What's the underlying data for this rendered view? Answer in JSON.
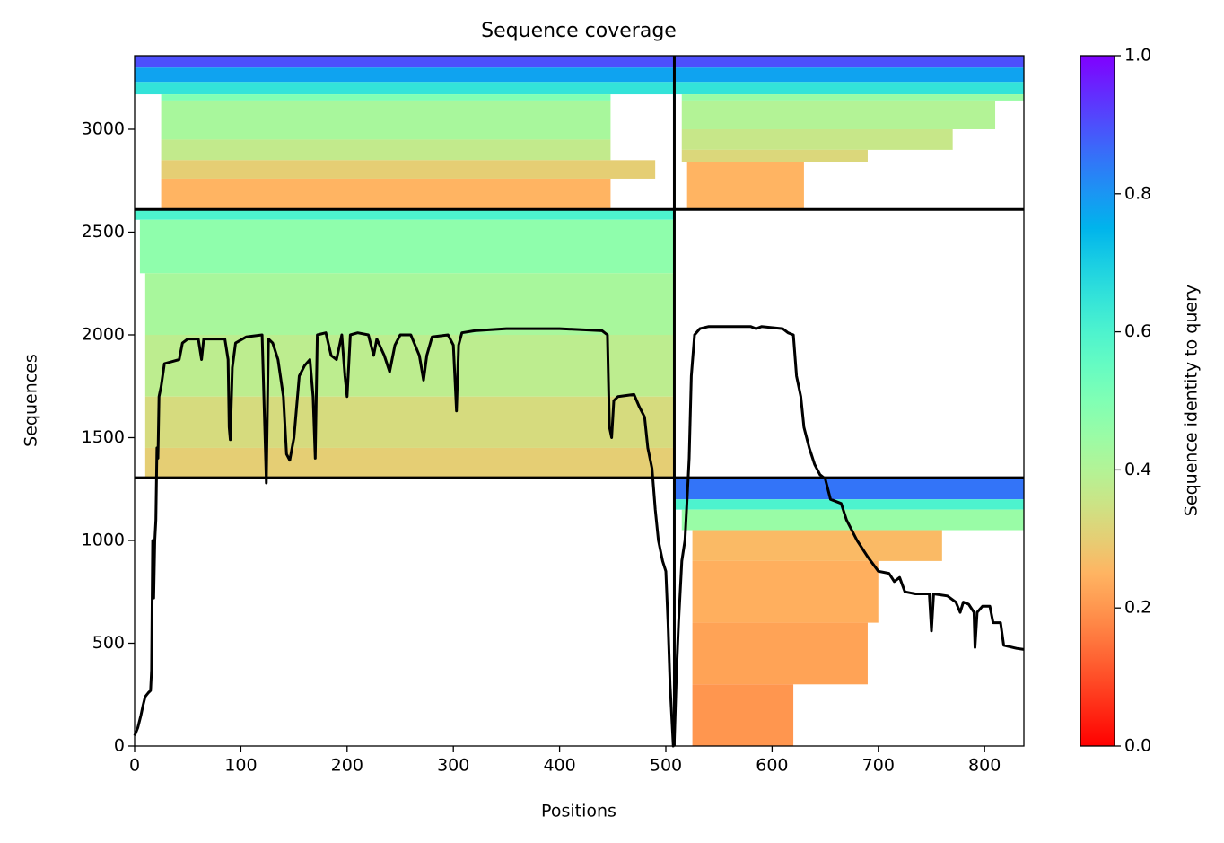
{
  "chart_data": {
    "type": "coverage",
    "title": "Sequence coverage",
    "xlabel": "Positions",
    "ylabel": "Sequences",
    "xlim": [
      0,
      837
    ],
    "ylim": [
      0,
      3358
    ],
    "xticks": [
      0,
      100,
      200,
      300,
      400,
      500,
      600,
      700,
      800
    ],
    "yticks": [
      0,
      500,
      1000,
      1500,
      2000,
      2500,
      3000
    ],
    "colormap": "rainbow_r",
    "colorbar": {
      "label": "Sequence identity to query",
      "lim": [
        0,
        1
      ],
      "ticks": [
        {
          "value": 0,
          "label": "0.0"
        },
        0.2,
        0.4,
        0.6,
        0.8,
        {
          "value": 1,
          "label": "1.0"
        }
      ]
    },
    "boundaries": {
      "x": [
        508
      ],
      "y": [
        1305,
        2610
      ]
    },
    "bands": [
      {
        "x0": 0,
        "x1": 508,
        "y0": 3300,
        "y1": 3358,
        "identity": 0.9
      },
      {
        "x0": 0,
        "x1": 508,
        "y0": 3230,
        "y1": 3300,
        "identity": 0.78
      },
      {
        "x0": 0,
        "x1": 508,
        "y0": 3170,
        "y1": 3230,
        "identity": 0.65
      },
      {
        "x0": 25,
        "x1": 448,
        "y0": 3140,
        "y1": 3170,
        "identity": 0.5
      },
      {
        "x0": 25,
        "x1": 448,
        "y0": 2950,
        "y1": 3140,
        "identity": 0.42
      },
      {
        "x0": 25,
        "x1": 448,
        "y0": 2850,
        "y1": 2950,
        "identity": 0.37
      },
      {
        "x0": 25,
        "x1": 490,
        "y0": 2760,
        "y1": 2850,
        "identity": 0.3
      },
      {
        "x0": 25,
        "x1": 448,
        "y0": 2610,
        "y1": 2760,
        "identity": 0.25
      },
      {
        "x0": 508,
        "x1": 837,
        "y0": 3300,
        "y1": 3358,
        "identity": 0.9
      },
      {
        "x0": 508,
        "x1": 837,
        "y0": 3230,
        "y1": 3300,
        "identity": 0.78
      },
      {
        "x0": 508,
        "x1": 837,
        "y0": 3170,
        "y1": 3230,
        "identity": 0.65
      },
      {
        "x0": 515,
        "x1": 837,
        "y0": 3140,
        "y1": 3170,
        "identity": 0.45
      },
      {
        "x0": 515,
        "x1": 810,
        "y0": 3000,
        "y1": 3140,
        "identity": 0.4
      },
      {
        "x0": 515,
        "x1": 770,
        "y0": 2900,
        "y1": 3000,
        "identity": 0.36
      },
      {
        "x0": 515,
        "x1": 690,
        "y0": 2840,
        "y1": 2900,
        "identity": 0.32
      },
      {
        "x0": 520,
        "x1": 630,
        "y0": 2610,
        "y1": 2840,
        "identity": 0.25
      },
      {
        "x0": 0,
        "x1": 508,
        "y0": 2560,
        "y1": 2610,
        "identity": 0.6
      },
      {
        "x0": 5,
        "x1": 508,
        "y0": 2300,
        "y1": 2560,
        "identity": 0.47
      },
      {
        "x0": 10,
        "x1": 508,
        "y0": 2000,
        "y1": 2300,
        "identity": 0.42
      },
      {
        "x0": 10,
        "x1": 508,
        "y0": 1700,
        "y1": 2000,
        "identity": 0.38
      },
      {
        "x0": 10,
        "x1": 508,
        "y0": 1450,
        "y1": 1700,
        "identity": 0.33
      },
      {
        "x0": 10,
        "x1": 508,
        "y0": 1305,
        "y1": 1450,
        "identity": 0.3
      },
      {
        "x0": 508,
        "x1": 837,
        "y0": 1200,
        "y1": 1305,
        "identity": 0.85
      },
      {
        "x0": 508,
        "x1": 837,
        "y0": 1150,
        "y1": 1200,
        "identity": 0.6
      },
      {
        "x0": 515,
        "x1": 837,
        "y0": 1050,
        "y1": 1150,
        "identity": 0.45
      },
      {
        "x0": 525,
        "x1": 760,
        "y0": 900,
        "y1": 1050,
        "identity": 0.26
      },
      {
        "x0": 525,
        "x1": 700,
        "y0": 600,
        "y1": 900,
        "identity": 0.24
      },
      {
        "x0": 525,
        "x1": 690,
        "y0": 300,
        "y1": 600,
        "identity": 0.22
      },
      {
        "x0": 525,
        "x1": 620,
        "y0": 0,
        "y1": 300,
        "identity": 0.2
      }
    ],
    "coverage": {
      "color": "#000000",
      "x": [
        0,
        3,
        6,
        8,
        10,
        13,
        15,
        16,
        17,
        18,
        19,
        20,
        21,
        22,
        23,
        25,
        28,
        35,
        42,
        45,
        50,
        60,
        63,
        65,
        85,
        88,
        89,
        90,
        92,
        95,
        105,
        120,
        124,
        126,
        130,
        135,
        140,
        143,
        146,
        150,
        155,
        160,
        165,
        168,
        170,
        172,
        180,
        185,
        190,
        195,
        198,
        200,
        203,
        210,
        220,
        225,
        228,
        235,
        240,
        245,
        250,
        260,
        268,
        272,
        275,
        280,
        295,
        300,
        303,
        305,
        308,
        320,
        350,
        400,
        440,
        445,
        447,
        449,
        451,
        455,
        470,
        475,
        480,
        483,
        487,
        490,
        493,
        497,
        500,
        502,
        504,
        506,
        507,
        508,
        510,
        512,
        515,
        518,
        520,
        522,
        524,
        527,
        532,
        540,
        560,
        580,
        585,
        590,
        610,
        615,
        620,
        623,
        627,
        630,
        635,
        640,
        645,
        650,
        655,
        665,
        670,
        680,
        690,
        700,
        710,
        715,
        720,
        725,
        735,
        748,
        750,
        752,
        765,
        773,
        777,
        780,
        785,
        790,
        791,
        793,
        798,
        805,
        808,
        815,
        818,
        830,
        837
      ],
      "values": [
        50,
        90,
        150,
        200,
        240,
        260,
        270,
        370,
        1000,
        720,
        1000,
        1100,
        1450,
        1400,
        1700,
        1750,
        1860,
        1870,
        1880,
        1960,
        1980,
        1980,
        1880,
        1980,
        1980,
        1880,
        1550,
        1490,
        1840,
        1960,
        1990,
        2000,
        1280,
        1980,
        1960,
        1880,
        1700,
        1420,
        1390,
        1500,
        1800,
        1850,
        1880,
        1700,
        1400,
        2000,
        2010,
        1900,
        1880,
        2000,
        1800,
        1700,
        2000,
        2010,
        2000,
        1900,
        1980,
        1900,
        1820,
        1950,
        2000,
        2000,
        1900,
        1780,
        1900,
        1990,
        2000,
        1950,
        1630,
        1950,
        2010,
        2020,
        2030,
        2030,
        2020,
        2000,
        1550,
        1500,
        1680,
        1700,
        1710,
        1650,
        1600,
        1450,
        1350,
        1150,
        1000,
        900,
        850,
        600,
        300,
        100,
        0,
        30,
        350,
        600,
        900,
        1000,
        1200,
        1400,
        1800,
        2000,
        2030,
        2040,
        2040,
        2040,
        2030,
        2040,
        2030,
        2010,
        2000,
        1800,
        1700,
        1550,
        1450,
        1370,
        1320,
        1300,
        1200,
        1180,
        1100,
        1000,
        920,
        850,
        840,
        800,
        820,
        750,
        740,
        740,
        560,
        740,
        730,
        700,
        650,
        700,
        690,
        650,
        480,
        650,
        680,
        680,
        600,
        600,
        490,
        475,
        470
      ]
    }
  }
}
